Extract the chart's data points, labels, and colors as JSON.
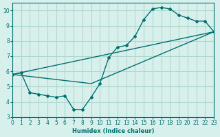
{
  "xlabel": "Humidex (Indice chaleur)",
  "xlim": [
    0,
    23
  ],
  "ylim": [
    3,
    10.5
  ],
  "yticks": [
    3,
    4,
    5,
    6,
    7,
    8,
    9,
    10
  ],
  "xticks": [
    0,
    1,
    2,
    3,
    4,
    5,
    6,
    7,
    8,
    9,
    10,
    11,
    12,
    13,
    14,
    15,
    16,
    17,
    18,
    19,
    20,
    21,
    22,
    23
  ],
  "bg_color": "#d8f0ec",
  "grid_color": "#b0d8d0",
  "line_color": "#007070",
  "series1_x": [
    0,
    1,
    2,
    3,
    4,
    5,
    6,
    7,
    8,
    9,
    10,
    11,
    12,
    13,
    14,
    15,
    16,
    17,
    18,
    19,
    20,
    21,
    22,
    23
  ],
  "series1_y": [
    5.8,
    5.9,
    4.6,
    4.5,
    4.4,
    4.3,
    4.4,
    3.5,
    3.5,
    4.3,
    5.2,
    6.9,
    7.6,
    7.7,
    8.3,
    9.4,
    10.1,
    10.2,
    10.1,
    9.7,
    9.5,
    9.3,
    9.3,
    8.6
  ],
  "series2_x": [
    0,
    23
  ],
  "series2_y": [
    5.8,
    8.6
  ],
  "series3_x": [
    0,
    9,
    23
  ],
  "series3_y": [
    5.8,
    5.2,
    8.6
  ]
}
